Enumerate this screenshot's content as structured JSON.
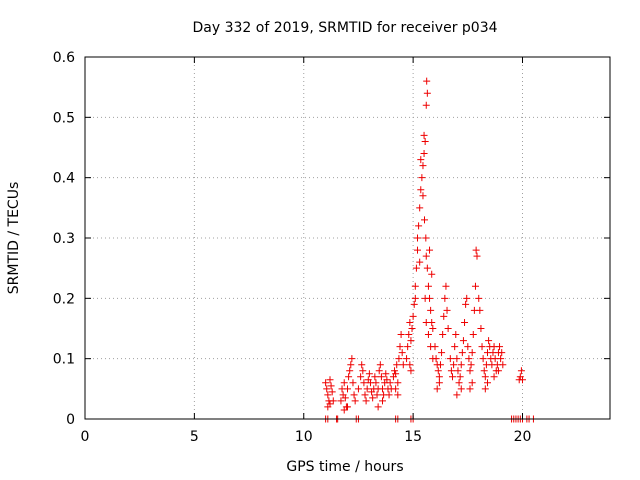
{
  "chart_data": {
    "type": "scatter",
    "title": "Day 332 of 2019, SRMTID for receiver p034",
    "xlabel": "GPS time / hours",
    "ylabel": "SRMTID / TECUs",
    "xlim": [
      0,
      24
    ],
    "ylim": [
      0,
      0.6
    ],
    "xticks": [
      "0",
      "5",
      "10",
      "15",
      "20"
    ],
    "yticks": [
      "0",
      "0.1",
      "0.2",
      "0.3",
      "0.4",
      "0.5",
      "0.6"
    ],
    "xtick_values": [
      0,
      5,
      10,
      15,
      20
    ],
    "ytick_values": [
      0,
      0.1,
      0.2,
      0.3,
      0.4,
      0.5,
      0.6
    ],
    "grid": true,
    "marker": "+",
    "color": "#ee0000",
    "series": [
      {
        "name": "SRMTID",
        "points": [
          [
            11.0,
            0.0
          ],
          [
            11.1,
            0.0
          ],
          [
            11.5,
            0.0
          ],
          [
            11.55,
            0.0
          ],
          [
            12.4,
            0.0
          ],
          [
            12.5,
            0.0
          ],
          [
            14.2,
            0.0
          ],
          [
            14.3,
            0.0
          ],
          [
            14.9,
            0.0
          ],
          [
            15.0,
            0.0
          ],
          [
            19.5,
            0.0
          ],
          [
            19.6,
            0.0
          ],
          [
            19.7,
            0.0
          ],
          [
            19.8,
            0.0
          ],
          [
            19.9,
            0.0
          ],
          [
            20.0,
            0.0
          ],
          [
            20.2,
            0.0
          ],
          [
            20.3,
            0.0
          ],
          [
            20.5,
            0.0
          ],
          [
            11.0,
            0.06
          ],
          [
            11.05,
            0.05
          ],
          [
            11.1,
            0.04
          ],
          [
            11.15,
            0.03
          ],
          [
            11.2,
            0.065
          ],
          [
            11.25,
            0.055
          ],
          [
            11.3,
            0.045
          ],
          [
            11.35,
            0.03
          ],
          [
            11.1,
            0.02
          ],
          [
            11.2,
            0.025
          ],
          [
            11.7,
            0.03
          ],
          [
            11.75,
            0.05
          ],
          [
            11.8,
            0.04
          ],
          [
            11.85,
            0.06
          ],
          [
            11.9,
            0.035
          ],
          [
            11.95,
            0.02
          ],
          [
            12.0,
            0.05
          ],
          [
            12.05,
            0.07
          ],
          [
            12.1,
            0.08
          ],
          [
            12.15,
            0.09
          ],
          [
            12.2,
            0.1
          ],
          [
            12.25,
            0.06
          ],
          [
            12.3,
            0.04
          ],
          [
            12.35,
            0.03
          ],
          [
            11.85,
            0.015
          ],
          [
            12.0,
            0.02
          ],
          [
            12.5,
            0.05
          ],
          [
            12.6,
            0.07
          ],
          [
            12.65,
            0.09
          ],
          [
            12.7,
            0.08
          ],
          [
            12.75,
            0.06
          ],
          [
            12.8,
            0.04
          ],
          [
            12.85,
            0.03
          ],
          [
            12.9,
            0.05
          ],
          [
            12.95,
            0.065
          ],
          [
            13.0,
            0.075
          ],
          [
            13.05,
            0.06
          ],
          [
            13.1,
            0.045
          ],
          [
            13.15,
            0.035
          ],
          [
            13.2,
            0.05
          ],
          [
            13.25,
            0.07
          ],
          [
            13.3,
            0.06
          ],
          [
            13.35,
            0.04
          ],
          [
            13.4,
            0.05
          ],
          [
            13.45,
            0.08
          ],
          [
            13.5,
            0.09
          ],
          [
            13.55,
            0.07
          ],
          [
            13.6,
            0.05
          ],
          [
            13.65,
            0.04
          ],
          [
            13.7,
            0.06
          ],
          [
            13.75,
            0.075
          ],
          [
            13.8,
            0.065
          ],
          [
            13.85,
            0.05
          ],
          [
            13.9,
            0.04
          ],
          [
            13.95,
            0.06
          ],
          [
            14.0,
            0.05
          ],
          [
            13.4,
            0.02
          ],
          [
            13.6,
            0.03
          ],
          [
            14.1,
            0.07
          ],
          [
            14.15,
            0.08
          ],
          [
            14.2,
            0.075
          ],
          [
            14.25,
            0.09
          ],
          [
            14.3,
            0.06
          ],
          [
            14.35,
            0.1
          ],
          [
            14.4,
            0.12
          ],
          [
            14.45,
            0.14
          ],
          [
            14.5,
            0.11
          ],
          [
            14.55,
            0.09
          ],
          [
            14.2,
            0.05
          ],
          [
            14.3,
            0.04
          ],
          [
            14.7,
            0.1
          ],
          [
            14.75,
            0.12
          ],
          [
            14.8,
            0.14
          ],
          [
            14.85,
            0.16
          ],
          [
            14.9,
            0.13
          ],
          [
            14.95,
            0.15
          ],
          [
            15.0,
            0.17
          ],
          [
            15.05,
            0.19
          ],
          [
            15.1,
            0.2
          ],
          [
            14.85,
            0.09
          ],
          [
            14.9,
            0.08
          ],
          [
            15.15,
            0.25
          ],
          [
            15.2,
            0.3
          ],
          [
            15.25,
            0.32
          ],
          [
            15.3,
            0.35
          ],
          [
            15.35,
            0.38
          ],
          [
            15.4,
            0.4
          ],
          [
            15.45,
            0.37
          ],
          [
            15.2,
            0.28
          ],
          [
            15.3,
            0.26
          ],
          [
            15.1,
            0.22
          ],
          [
            15.35,
            0.43
          ],
          [
            15.45,
            0.42
          ],
          [
            15.5,
            0.47
          ],
          [
            15.55,
            0.46
          ],
          [
            15.6,
            0.52
          ],
          [
            15.65,
            0.54
          ],
          [
            15.62,
            0.56
          ],
          [
            15.5,
            0.44
          ],
          [
            15.52,
            0.33
          ],
          [
            15.58,
            0.3
          ],
          [
            15.6,
            0.27
          ],
          [
            15.65,
            0.25
          ],
          [
            15.7,
            0.22
          ],
          [
            15.75,
            0.2
          ],
          [
            15.8,
            0.18
          ],
          [
            15.85,
            0.16
          ],
          [
            15.9,
            0.15
          ],
          [
            15.55,
            0.2
          ],
          [
            15.6,
            0.16
          ],
          [
            15.7,
            0.14
          ],
          [
            15.8,
            0.12
          ],
          [
            15.9,
            0.1
          ],
          [
            15.75,
            0.28
          ],
          [
            15.85,
            0.24
          ],
          [
            16.0,
            0.12
          ],
          [
            16.05,
            0.1
          ],
          [
            16.1,
            0.09
          ],
          [
            16.15,
            0.08
          ],
          [
            16.2,
            0.07
          ],
          [
            16.25,
            0.09
          ],
          [
            16.3,
            0.11
          ],
          [
            16.35,
            0.14
          ],
          [
            16.4,
            0.17
          ],
          [
            16.45,
            0.2
          ],
          [
            16.5,
            0.22
          ],
          [
            16.55,
            0.18
          ],
          [
            16.6,
            0.15
          ],
          [
            16.1,
            0.05
          ],
          [
            16.2,
            0.06
          ],
          [
            16.7,
            0.1
          ],
          [
            16.75,
            0.08
          ],
          [
            16.8,
            0.07
          ],
          [
            16.85,
            0.09
          ],
          [
            16.9,
            0.12
          ],
          [
            16.95,
            0.14
          ],
          [
            17.0,
            0.1
          ],
          [
            17.05,
            0.08
          ],
          [
            17.1,
            0.06
          ],
          [
            17.15,
            0.07
          ],
          [
            17.2,
            0.09
          ],
          [
            17.25,
            0.11
          ],
          [
            17.3,
            0.13
          ],
          [
            17.35,
            0.16
          ],
          [
            17.4,
            0.19
          ],
          [
            17.45,
            0.2
          ],
          [
            17.0,
            0.04
          ],
          [
            17.2,
            0.05
          ],
          [
            17.5,
            0.12
          ],
          [
            17.55,
            0.1
          ],
          [
            17.6,
            0.08
          ],
          [
            17.65,
            0.09
          ],
          [
            17.7,
            0.11
          ],
          [
            17.75,
            0.14
          ],
          [
            17.8,
            0.18
          ],
          [
            17.85,
            0.22
          ],
          [
            17.88,
            0.28
          ],
          [
            17.92,
            0.27
          ],
          [
            17.7,
            0.06
          ],
          [
            17.6,
            0.05
          ],
          [
            18.0,
            0.2
          ],
          [
            18.05,
            0.18
          ],
          [
            18.1,
            0.15
          ],
          [
            18.15,
            0.12
          ],
          [
            18.2,
            0.1
          ],
          [
            18.25,
            0.08
          ],
          [
            18.3,
            0.07
          ],
          [
            18.35,
            0.09
          ],
          [
            18.4,
            0.11
          ],
          [
            18.45,
            0.13
          ],
          [
            18.5,
            0.12
          ],
          [
            18.55,
            0.1
          ],
          [
            18.3,
            0.05
          ],
          [
            18.4,
            0.06
          ],
          [
            18.6,
            0.09
          ],
          [
            18.65,
            0.11
          ],
          [
            18.7,
            0.12
          ],
          [
            18.75,
            0.1
          ],
          [
            18.8,
            0.08
          ],
          [
            18.85,
            0.09
          ],
          [
            18.9,
            0.11
          ],
          [
            18.95,
            0.12
          ],
          [
            19.0,
            0.1
          ],
          [
            19.05,
            0.11
          ],
          [
            19.1,
            0.09
          ],
          [
            18.7,
            0.07
          ],
          [
            18.9,
            0.08
          ],
          [
            19.85,
            0.065
          ],
          [
            19.9,
            0.07
          ],
          [
            19.95,
            0.08
          ],
          [
            20.0,
            0.065
          ]
        ]
      }
    ]
  }
}
